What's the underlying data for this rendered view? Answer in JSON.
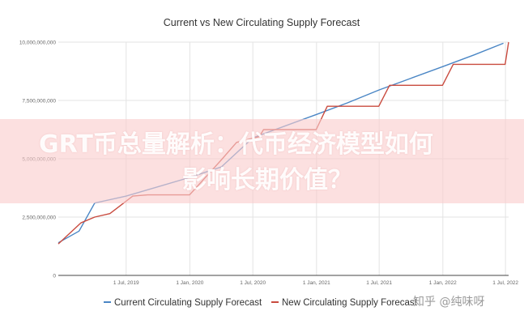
{
  "chart_data": {
    "type": "line",
    "title": "Current vs New Circulating Supply Forecast",
    "xlabel": "",
    "ylabel": "",
    "x_ticks": [
      "1 Jul, 2019",
      "1 Jan, 2020",
      "1 Jul, 2020",
      "1 Jan, 2021",
      "1 Jul, 2021",
      "1 Jan, 2022",
      "1 Jul, 2022"
    ],
    "x_range": [
      "2018-12-17",
      "2022-07-10"
    ],
    "y_ticks": [
      "0",
      "2,500,000,000",
      "5,000,000,000",
      "7,500,000,000",
      "10,000,000,000"
    ],
    "ylim": [
      0,
      10000000000
    ],
    "grid": true,
    "legend_position": "bottom",
    "series": [
      {
        "name": "Current Circulating Supply Forecast",
        "color": "#4a86c5",
        "points": [
          [
            "2018-12-17",
            1400000000
          ],
          [
            "2019-02-15",
            1900000000
          ],
          [
            "2019-04-01",
            3100000000
          ],
          [
            "2019-07-01",
            3400000000
          ],
          [
            "2019-10-01",
            3800000000
          ],
          [
            "2020-01-01",
            4200000000
          ],
          [
            "2020-04-01",
            4650000000
          ],
          [
            "2020-07-01",
            5900000000
          ],
          [
            "2020-10-01",
            6400000000
          ],
          [
            "2021-01-01",
            6900000000
          ],
          [
            "2021-04-01",
            7400000000
          ],
          [
            "2021-07-01",
            7950000000
          ],
          [
            "2021-10-01",
            8450000000
          ],
          [
            "2022-01-01",
            8950000000
          ],
          [
            "2022-04-01",
            9450000000
          ],
          [
            "2022-06-25",
            9950000000
          ]
        ]
      },
      {
        "name": "New Circulating Supply Forecast",
        "color": "#c94b3f",
        "points": [
          [
            "2018-12-17",
            1350000000
          ],
          [
            "2019-02-20",
            2250000000
          ],
          [
            "2019-04-01",
            2500000000
          ],
          [
            "2019-05-15",
            2650000000
          ],
          [
            "2019-07-20",
            3400000000
          ],
          [
            "2019-09-01",
            3450000000
          ],
          [
            "2019-12-31",
            3450000000
          ],
          [
            "2020-04-01",
            4950000000
          ],
          [
            "2020-05-15",
            5700000000
          ],
          [
            "2020-07-20",
            5950000000
          ],
          [
            "2020-08-01",
            6250000000
          ],
          [
            "2020-12-31",
            6250000000
          ],
          [
            "2021-02-01",
            7250000000
          ],
          [
            "2021-06-30",
            7250000000
          ],
          [
            "2021-07-31",
            8150000000
          ],
          [
            "2021-12-31",
            8150000000
          ],
          [
            "2022-01-31",
            9050000000
          ],
          [
            "2022-06-30",
            9050000000
          ],
          [
            "2022-07-10",
            10000000000
          ]
        ]
      }
    ]
  },
  "overlay": {
    "headline_line1": "GRT币总量解析：代币经济模型如何",
    "headline_line2": "影响长期价值？"
  },
  "watermark": "知乎 @纯味呀"
}
